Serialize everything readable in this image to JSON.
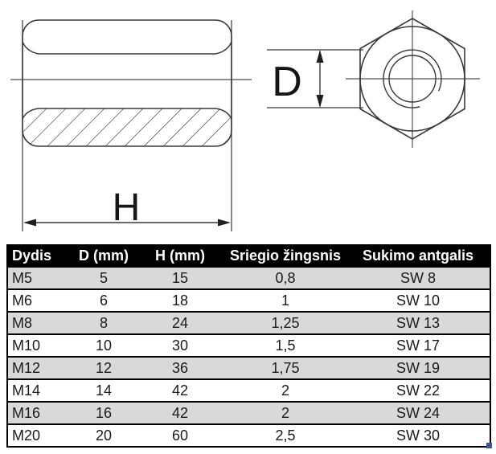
{
  "drawing": {
    "label_h": "H",
    "label_d": "D"
  },
  "table": {
    "headers": [
      "Dydis",
      "D (mm)",
      "H (mm)",
      "Sriegio žingsnis",
      "Sukimo antgalis"
    ],
    "rows": [
      [
        "M5",
        "5",
        "15",
        "0,8",
        "SW 8"
      ],
      [
        "M6",
        "6",
        "18",
        "1",
        "SW 10"
      ],
      [
        "M8",
        "8",
        "24",
        "1,25",
        "SW 13"
      ],
      [
        "M10",
        "10",
        "30",
        "1,5",
        "SW 17"
      ],
      [
        "M12",
        "12",
        "36",
        "1,75",
        "SW 19"
      ],
      [
        "M14",
        "14",
        "42",
        "2",
        "SW 22"
      ],
      [
        "M16",
        "16",
        "42",
        "2",
        "SW 24"
      ],
      [
        "M20",
        "20",
        "60",
        "2,5",
        "SW 30"
      ]
    ]
  },
  "colors": {
    "header_bg": "#000000",
    "header_text": "#ffffff",
    "row_bg": "#ffffff",
    "row_alt_bg": "#d9d9d9",
    "border": "#000000",
    "line": "#383838",
    "centerline": "#4f4f4f",
    "handle": "#3f5598"
  }
}
